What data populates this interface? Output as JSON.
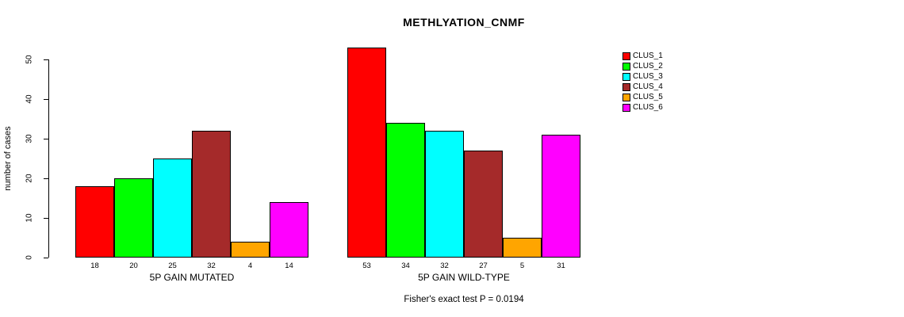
{
  "title": "METHLYATION_CNMF",
  "ylabel": "number of cases",
  "footnote": "Fisher's exact test P = 0.0194",
  "chart_data": {
    "type": "bar",
    "title": "METHLYATION_CNMF",
    "ylabel": "number of cases",
    "xlabel": "",
    "ylim": [
      0,
      50
    ],
    "yticks": [
      0,
      10,
      20,
      30,
      40,
      50
    ],
    "grid": false,
    "legend_position": "top-right",
    "clusters": [
      "CLUS_1",
      "CLUS_2",
      "CLUS_3",
      "CLUS_4",
      "CLUS_5",
      "CLUS_6"
    ],
    "colors": [
      "#FF0000",
      "#00FF00",
      "#00FFFF",
      "#A52A2A",
      "#FFA500",
      "#FF00FF"
    ],
    "groups": [
      {
        "label": "5P GAIN MUTATED",
        "values": [
          18,
          20,
          25,
          32,
          4,
          14
        ]
      },
      {
        "label": "5P GAIN WILD-TYPE",
        "values": [
          53,
          34,
          32,
          27,
          5,
          31
        ]
      }
    ],
    "annotation": "Fisher's exact test P = 0.0194"
  }
}
